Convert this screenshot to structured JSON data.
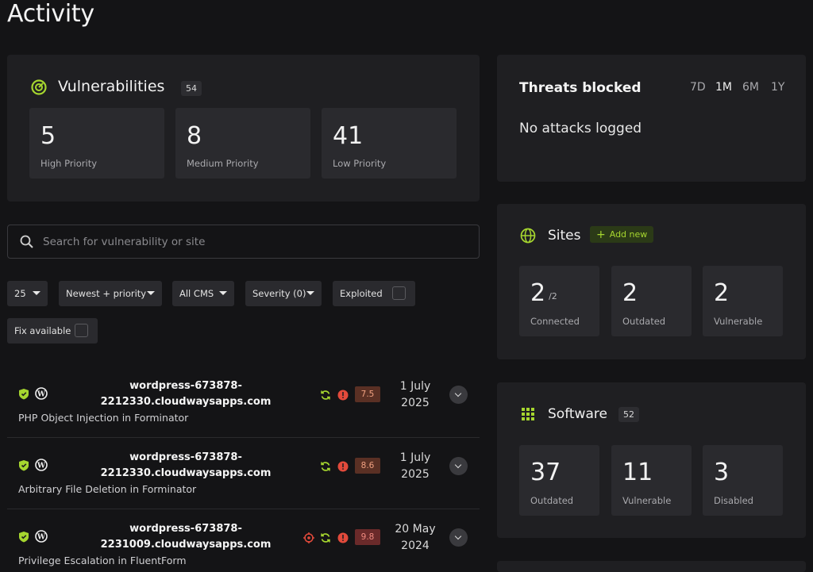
{
  "page": {
    "title": "Activity"
  },
  "vulnerabilities": {
    "title": "Vulnerabilities",
    "count": "54",
    "stats": [
      {
        "value": "5",
        "label": "High Priority"
      },
      {
        "value": "8",
        "label": "Medium Priority"
      },
      {
        "value": "41",
        "label": "Low Priority"
      }
    ]
  },
  "search": {
    "placeholder": "Search for vulnerability or site"
  },
  "filters": {
    "per_page": "25",
    "sort": "Newest + priority",
    "cms": "All CMS",
    "severity": "Severity (0)",
    "exploited": "Exploited",
    "fix_available": "Fix available"
  },
  "rows": [
    {
      "site_line1": "wordpress-673878-",
      "site_line2": "2212330.cloudwaysapps.com",
      "title": "PHP Object Injection in Forminator",
      "score": "7.5",
      "date_line1": "1 July",
      "date_line2": "2025"
    },
    {
      "site_line1": "wordpress-673878-",
      "site_line2": "2212330.cloudwaysapps.com",
      "title": "Arbitrary File Deletion in Forminator",
      "score": "8.6",
      "date_line1": "1 July",
      "date_line2": "2025"
    },
    {
      "site_line1": "wordpress-673878-",
      "site_line2": "2231009.cloudwaysapps.com",
      "title": "Privilege Escalation in FluentForm",
      "score": "9.8",
      "date_line1": "20 May",
      "date_line2": "2024"
    }
  ],
  "threats": {
    "title": "Threats blocked",
    "ranges": [
      "7D",
      "1M",
      "6M",
      "1Y"
    ],
    "active_range": "1M",
    "empty_text": "No attacks logged"
  },
  "sites": {
    "title": "Sites",
    "add_label": "Add new",
    "stats": [
      {
        "value": "2",
        "sub": "/2",
        "label": "Connected"
      },
      {
        "value": "2",
        "label": "Outdated"
      },
      {
        "value": "2",
        "label": "Vulnerable"
      }
    ]
  },
  "software": {
    "title": "Software",
    "count": "52",
    "stats": [
      {
        "value": "37",
        "label": "Outdated"
      },
      {
        "value": "11",
        "label": "Vulnerable"
      },
      {
        "value": "3",
        "label": "Disabled"
      }
    ]
  },
  "colors": {
    "accent": "#a6d62f",
    "background": "#141416",
    "card": "#1f1f22",
    "danger": "#e24a3b",
    "score_bg": "#5a3024"
  }
}
